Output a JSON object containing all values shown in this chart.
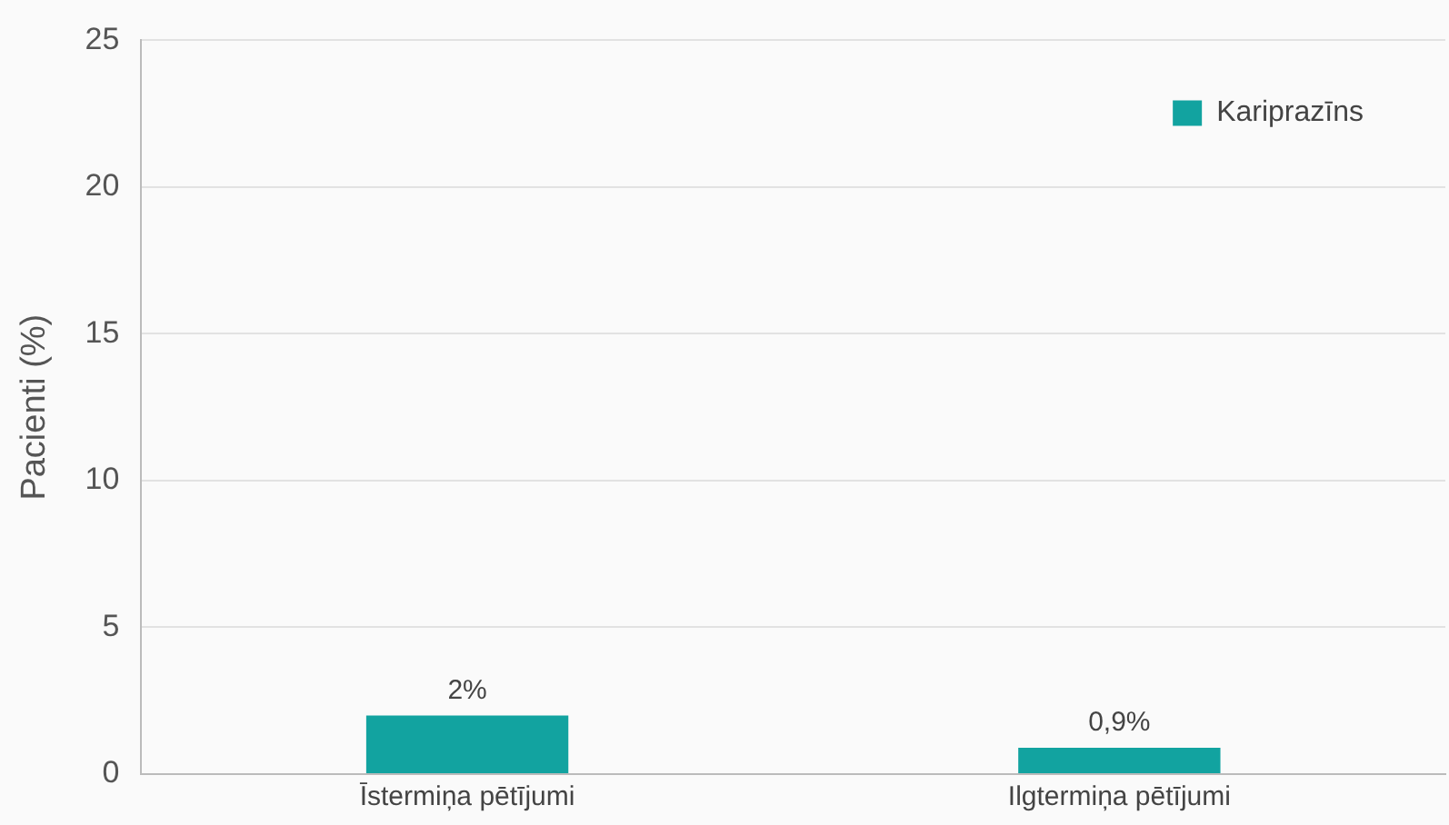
{
  "chart_data": {
    "type": "bar",
    "categories": [
      "Īstermiņa pētījumi",
      "Ilgtermiņa pētījumi"
    ],
    "series": [
      {
        "name": "Kariprazīns",
        "color": "#12a3a0",
        "values": [
          2,
          0.9
        ],
        "value_labels": [
          "2%",
          "0,9%"
        ]
      }
    ],
    "ylabel": "Pacienti (%)",
    "ylim": [
      0,
      25
    ],
    "yticks": [
      0,
      5,
      10,
      15,
      20,
      25
    ],
    "grid": "y",
    "legend": "top right"
  }
}
